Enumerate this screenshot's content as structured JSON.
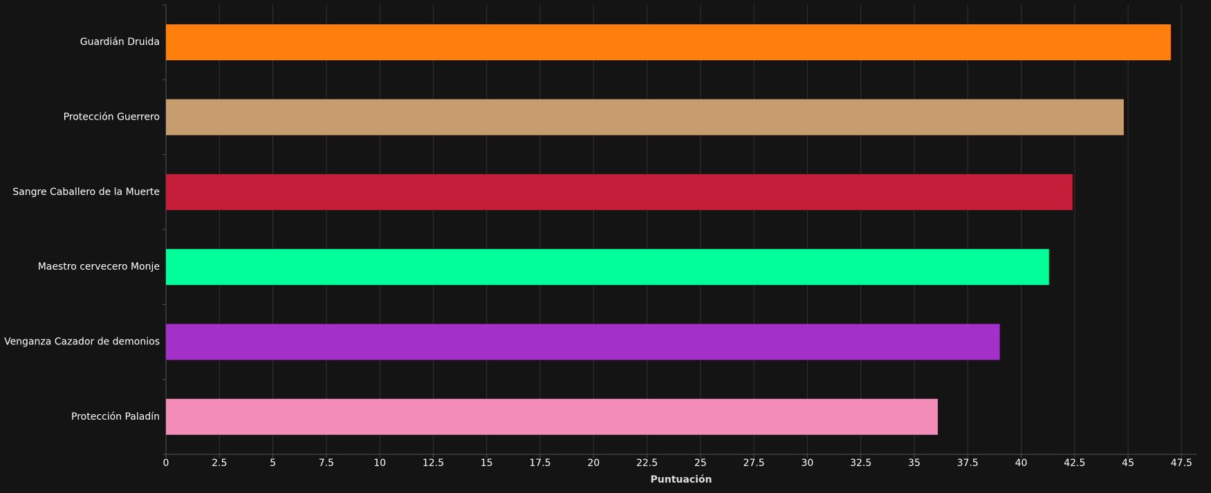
{
  "chart_data": {
    "type": "bar",
    "orientation": "horizontal",
    "categories": [
      "Guardián Druida",
      "Protección Guerrero",
      "Sangre Caballero de la Muerte",
      "Maestro cervecero Monje",
      "Venganza Cazador de demonios",
      "Protección Paladín"
    ],
    "values": [
      47.0,
      44.8,
      42.4,
      41.3,
      39.0,
      36.1
    ],
    "colors": [
      "#ff7f0e",
      "#c79c6e",
      "#c41e3a",
      "#00ff98",
      "#a330c9",
      "#f48cba"
    ],
    "xlabel": "Puntuación",
    "xlim": [
      0,
      48.2
    ],
    "xticks": [
      0,
      2.5,
      5,
      7.5,
      10,
      12.5,
      15,
      17.5,
      20,
      22.5,
      25,
      27.5,
      30,
      32.5,
      35,
      37.5,
      40,
      42.5,
      45,
      47.5
    ],
    "grid": true
  }
}
